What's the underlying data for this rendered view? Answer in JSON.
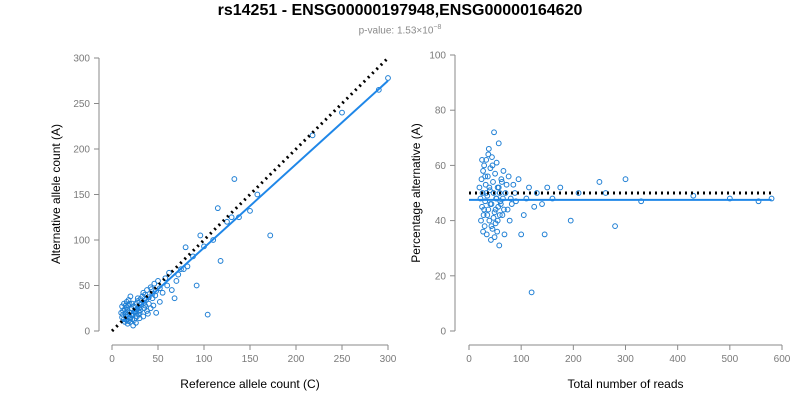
{
  "title": "rs14251 - ENSG00000197948,ENSG00000164620",
  "subtitle": {
    "prefix": "p-value: 1.53×10",
    "exponent": "−8"
  },
  "colors": {
    "points": "#1f7fd4",
    "fit": "#1f87e8",
    "reference": "#000000",
    "axis": "#8a8a8a"
  },
  "chart_data": [
    {
      "type": "scatter",
      "name": "left",
      "xlabel": "Reference allele count (C)",
      "ylabel": "Alternative allele count (A)",
      "xlim": [
        0,
        300
      ],
      "ylim": [
        0,
        300
      ],
      "xticks": [
        0,
        50,
        100,
        150,
        200,
        250,
        300
      ],
      "yticks": [
        0,
        50,
        100,
        150,
        200,
        250,
        300
      ],
      "reference_line": {
        "style": "dotted",
        "from": [
          0,
          0
        ],
        "to": [
          300,
          300
        ]
      },
      "fit_line": {
        "style": "solid",
        "from": [
          10,
          9
        ],
        "to": [
          300,
          275
        ]
      },
      "points": [
        [
          14,
          10
        ],
        [
          16,
          12
        ],
        [
          18,
          11
        ],
        [
          20,
          14
        ],
        [
          22,
          13
        ],
        [
          15,
          16
        ],
        [
          17,
          18
        ],
        [
          19,
          20
        ],
        [
          21,
          17
        ],
        [
          23,
          19
        ],
        [
          12,
          22
        ],
        [
          14,
          24
        ],
        [
          16,
          26
        ],
        [
          18,
          28
        ],
        [
          13,
          30
        ],
        [
          11,
          27
        ],
        [
          10,
          20
        ],
        [
          12,
          18
        ],
        [
          25,
          21
        ],
        [
          27,
          24
        ],
        [
          24,
          27
        ],
        [
          26,
          30
        ],
        [
          28,
          33
        ],
        [
          30,
          26
        ],
        [
          32,
          29
        ],
        [
          29,
          22
        ],
        [
          31,
          35
        ],
        [
          33,
          38
        ],
        [
          35,
          31
        ],
        [
          37,
          34
        ],
        [
          34,
          42
        ],
        [
          36,
          40
        ],
        [
          38,
          45
        ],
        [
          40,
          37
        ],
        [
          42,
          48
        ],
        [
          44,
          41
        ],
        [
          46,
          52
        ],
        [
          48,
          44
        ],
        [
          50,
          55
        ],
        [
          52,
          47
        ],
        [
          38,
          22
        ],
        [
          42,
          25
        ],
        [
          45,
          28
        ],
        [
          48,
          20
        ],
        [
          52,
          32
        ],
        [
          20,
          10
        ],
        [
          24,
          12
        ],
        [
          26,
          9
        ],
        [
          30,
          14
        ],
        [
          34,
          16
        ],
        [
          18,
          34
        ],
        [
          20,
          38
        ],
        [
          22,
          30
        ],
        [
          16,
          32
        ],
        [
          55,
          42
        ],
        [
          58,
          58
        ],
        [
          60,
          50
        ],
        [
          62,
          64
        ],
        [
          65,
          45
        ],
        [
          68,
          36
        ],
        [
          70,
          55
        ],
        [
          72,
          62
        ],
        [
          75,
          68
        ],
        [
          78,
          68
        ],
        [
          80,
          92
        ],
        [
          82,
          71
        ],
        [
          88,
          82
        ],
        [
          92,
          50
        ],
        [
          96,
          105
        ],
        [
          100,
          93
        ],
        [
          104,
          18
        ],
        [
          110,
          100
        ],
        [
          115,
          135
        ],
        [
          118,
          77
        ],
        [
          125,
          120
        ],
        [
          130,
          125
        ],
        [
          133,
          167
        ],
        [
          138,
          125
        ],
        [
          150,
          132
        ],
        [
          158,
          150
        ],
        [
          172,
          105
        ],
        [
          218,
          215
        ],
        [
          250,
          240
        ],
        [
          290,
          265
        ],
        [
          300,
          278
        ],
        [
          25,
          22
        ],
        [
          27,
          16
        ],
        [
          29,
          18
        ],
        [
          31,
          23
        ],
        [
          21,
          25
        ],
        [
          19,
          14
        ],
        [
          17,
          8
        ],
        [
          23,
          6
        ],
        [
          13,
          13
        ],
        [
          15,
          20
        ],
        [
          11,
          15
        ],
        [
          28,
          36
        ],
        [
          36,
          28
        ],
        [
          40,
          30
        ],
        [
          44,
          36
        ],
        [
          35,
          25
        ],
        [
          39,
          19
        ],
        [
          43,
          46
        ],
        [
          47,
          39
        ],
        [
          22,
          17
        ],
        [
          26,
          19
        ],
        [
          30,
          20
        ],
        [
          17,
          23
        ],
        [
          15,
          28
        ],
        [
          19,
          30
        ]
      ]
    },
    {
      "type": "scatter",
      "name": "right",
      "xlabel": "Total number of reads",
      "ylabel": "Percentage alternative (A)",
      "xlim": [
        0,
        600
      ],
      "ylim": [
        0,
        100
      ],
      "xticks": [
        0,
        100,
        200,
        300,
        400,
        500,
        600
      ],
      "yticks": [
        0,
        20,
        40,
        60,
        80,
        100
      ],
      "reference_line": {
        "style": "dotted",
        "from": [
          0,
          50
        ],
        "to": [
          580,
          50
        ]
      },
      "fit_line": {
        "style": "solid",
        "from": [
          0,
          47.5
        ],
        "to": [
          580,
          47.5
        ]
      },
      "points": [
        [
          20,
          52
        ],
        [
          22,
          48
        ],
        [
          24,
          55
        ],
        [
          25,
          45
        ],
        [
          26,
          50
        ],
        [
          27,
          58
        ],
        [
          28,
          42
        ],
        [
          29,
          60
        ],
        [
          30,
          38
        ],
        [
          31,
          47
        ],
        [
          32,
          53
        ],
        [
          33,
          62
        ],
        [
          34,
          35
        ],
        [
          35,
          49
        ],
        [
          36,
          56
        ],
        [
          37,
          44
        ],
        [
          38,
          66
        ],
        [
          39,
          40
        ],
        [
          40,
          51
        ],
        [
          41,
          59
        ],
        [
          42,
          33
        ],
        [
          43,
          46
        ],
        [
          44,
          63
        ],
        [
          45,
          37
        ],
        [
          46,
          54
        ],
        [
          47,
          41
        ],
        [
          48,
          72
        ],
        [
          49,
          43
        ],
        [
          50,
          57
        ],
        [
          51,
          39
        ],
        [
          52,
          48
        ],
        [
          53,
          61
        ],
        [
          54,
          36
        ],
        [
          55,
          52
        ],
        [
          56,
          45
        ],
        [
          57,
          68
        ],
        [
          58,
          31
        ],
        [
          59,
          50
        ],
        [
          60,
          47
        ],
        [
          62,
          55
        ],
        [
          64,
          42
        ],
        [
          66,
          58
        ],
        [
          68,
          35
        ],
        [
          70,
          50
        ],
        [
          72,
          53
        ],
        [
          74,
          44
        ],
        [
          76,
          56
        ],
        [
          78,
          40
        ],
        [
          80,
          48
        ],
        [
          82,
          46
        ],
        [
          85,
          53
        ],
        [
          88,
          50
        ],
        [
          90,
          47
        ],
        [
          95,
          55
        ],
        [
          100,
          35
        ],
        [
          105,
          42
        ],
        [
          110,
          48
        ],
        [
          115,
          52
        ],
        [
          120,
          14
        ],
        [
          125,
          45
        ],
        [
          130,
          50
        ],
        [
          140,
          46
        ],
        [
          145,
          35
        ],
        [
          150,
          52
        ],
        [
          160,
          48
        ],
        [
          175,
          52
        ],
        [
          195,
          40
        ],
        [
          210,
          50
        ],
        [
          250,
          54
        ],
        [
          262,
          50
        ],
        [
          280,
          38
        ],
        [
          300,
          55
        ],
        [
          330,
          47
        ],
        [
          430,
          49
        ],
        [
          500,
          48
        ],
        [
          555,
          47
        ],
        [
          580,
          48
        ],
        [
          23,
          40
        ],
        [
          25,
          62
        ],
        [
          27,
          36
        ],
        [
          29,
          44
        ],
        [
          31,
          56
        ],
        [
          33,
          50
        ],
        [
          35,
          42
        ],
        [
          37,
          64
        ],
        [
          39,
          52
        ],
        [
          41,
          46
        ],
        [
          43,
          38
        ],
        [
          45,
          60
        ],
        [
          47,
          50
        ],
        [
          49,
          34
        ],
        [
          51,
          44
        ],
        [
          53,
          48
        ],
        [
          55,
          40
        ],
        [
          57,
          52
        ],
        [
          59,
          42
        ],
        [
          61,
          46
        ],
        [
          63,
          54
        ],
        [
          65,
          48
        ],
        [
          67,
          44
        ]
      ]
    }
  ]
}
